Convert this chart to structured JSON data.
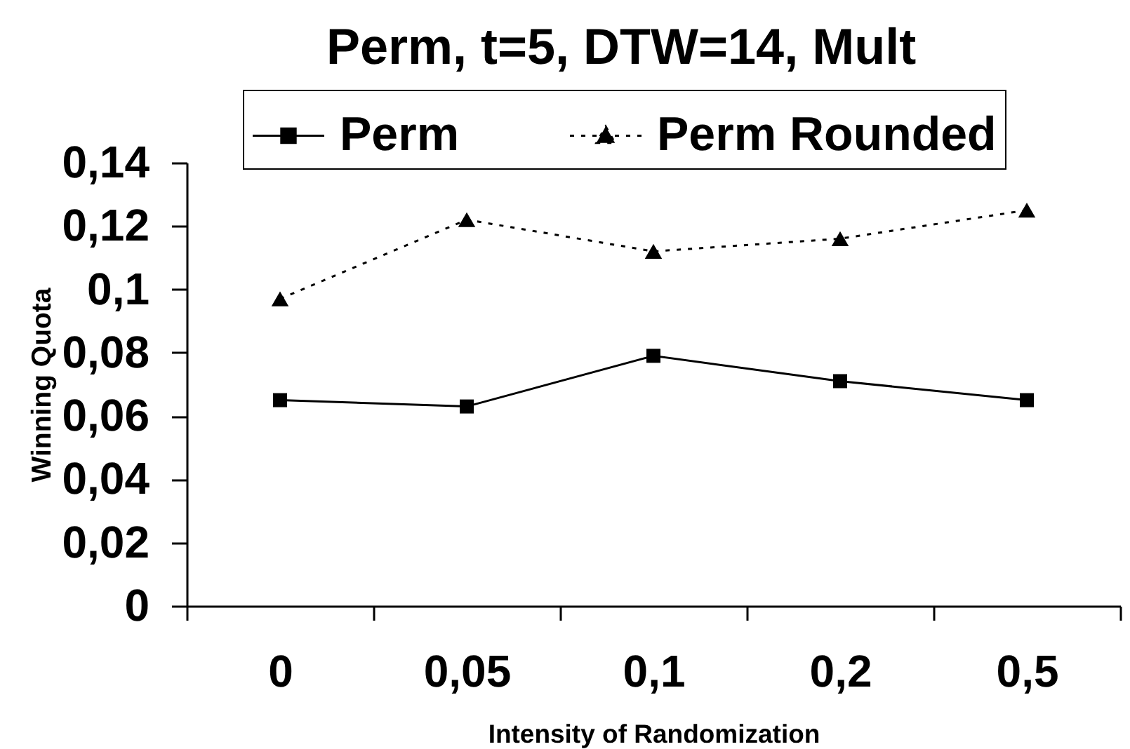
{
  "chart_data": {
    "type": "line",
    "title": "Perm, t=5, DTW=14, Mult",
    "xlabel": "Intensity of Randomization",
    "ylabel": "Winning Quota",
    "categories": [
      "0",
      "0,05",
      "0,1",
      "0,2",
      "0,5"
    ],
    "series": [
      {
        "name": "Perm",
        "color": "#000000",
        "values": [
          0.065,
          0.063,
          0.079,
          0.071,
          0.065
        ],
        "marker": "square",
        "line_style": "solid"
      },
      {
        "name": "Perm Rounded",
        "color": "#000000",
        "values": [
          0.097,
          0.122,
          0.112,
          0.116,
          0.125
        ],
        "marker": "triangle",
        "line_style": "dotted"
      }
    ],
    "ylim": [
      0,
      0.14
    ],
    "yticks": [
      0,
      {
        "value": 0.02,
        "label": "0,02"
      },
      {
        "value": 0.04,
        "label": "0,04"
      },
      {
        "value": 0.06,
        "label": "0,06"
      },
      {
        "value": 0.08,
        "label": "0,08"
      },
      {
        "value": 0.1,
        "label": "0,1"
      },
      {
        "value": 0.12,
        "label": "0,12"
      },
      {
        "value": 0.14,
        "label": "0,14"
      }
    ],
    "legend": "top"
  }
}
